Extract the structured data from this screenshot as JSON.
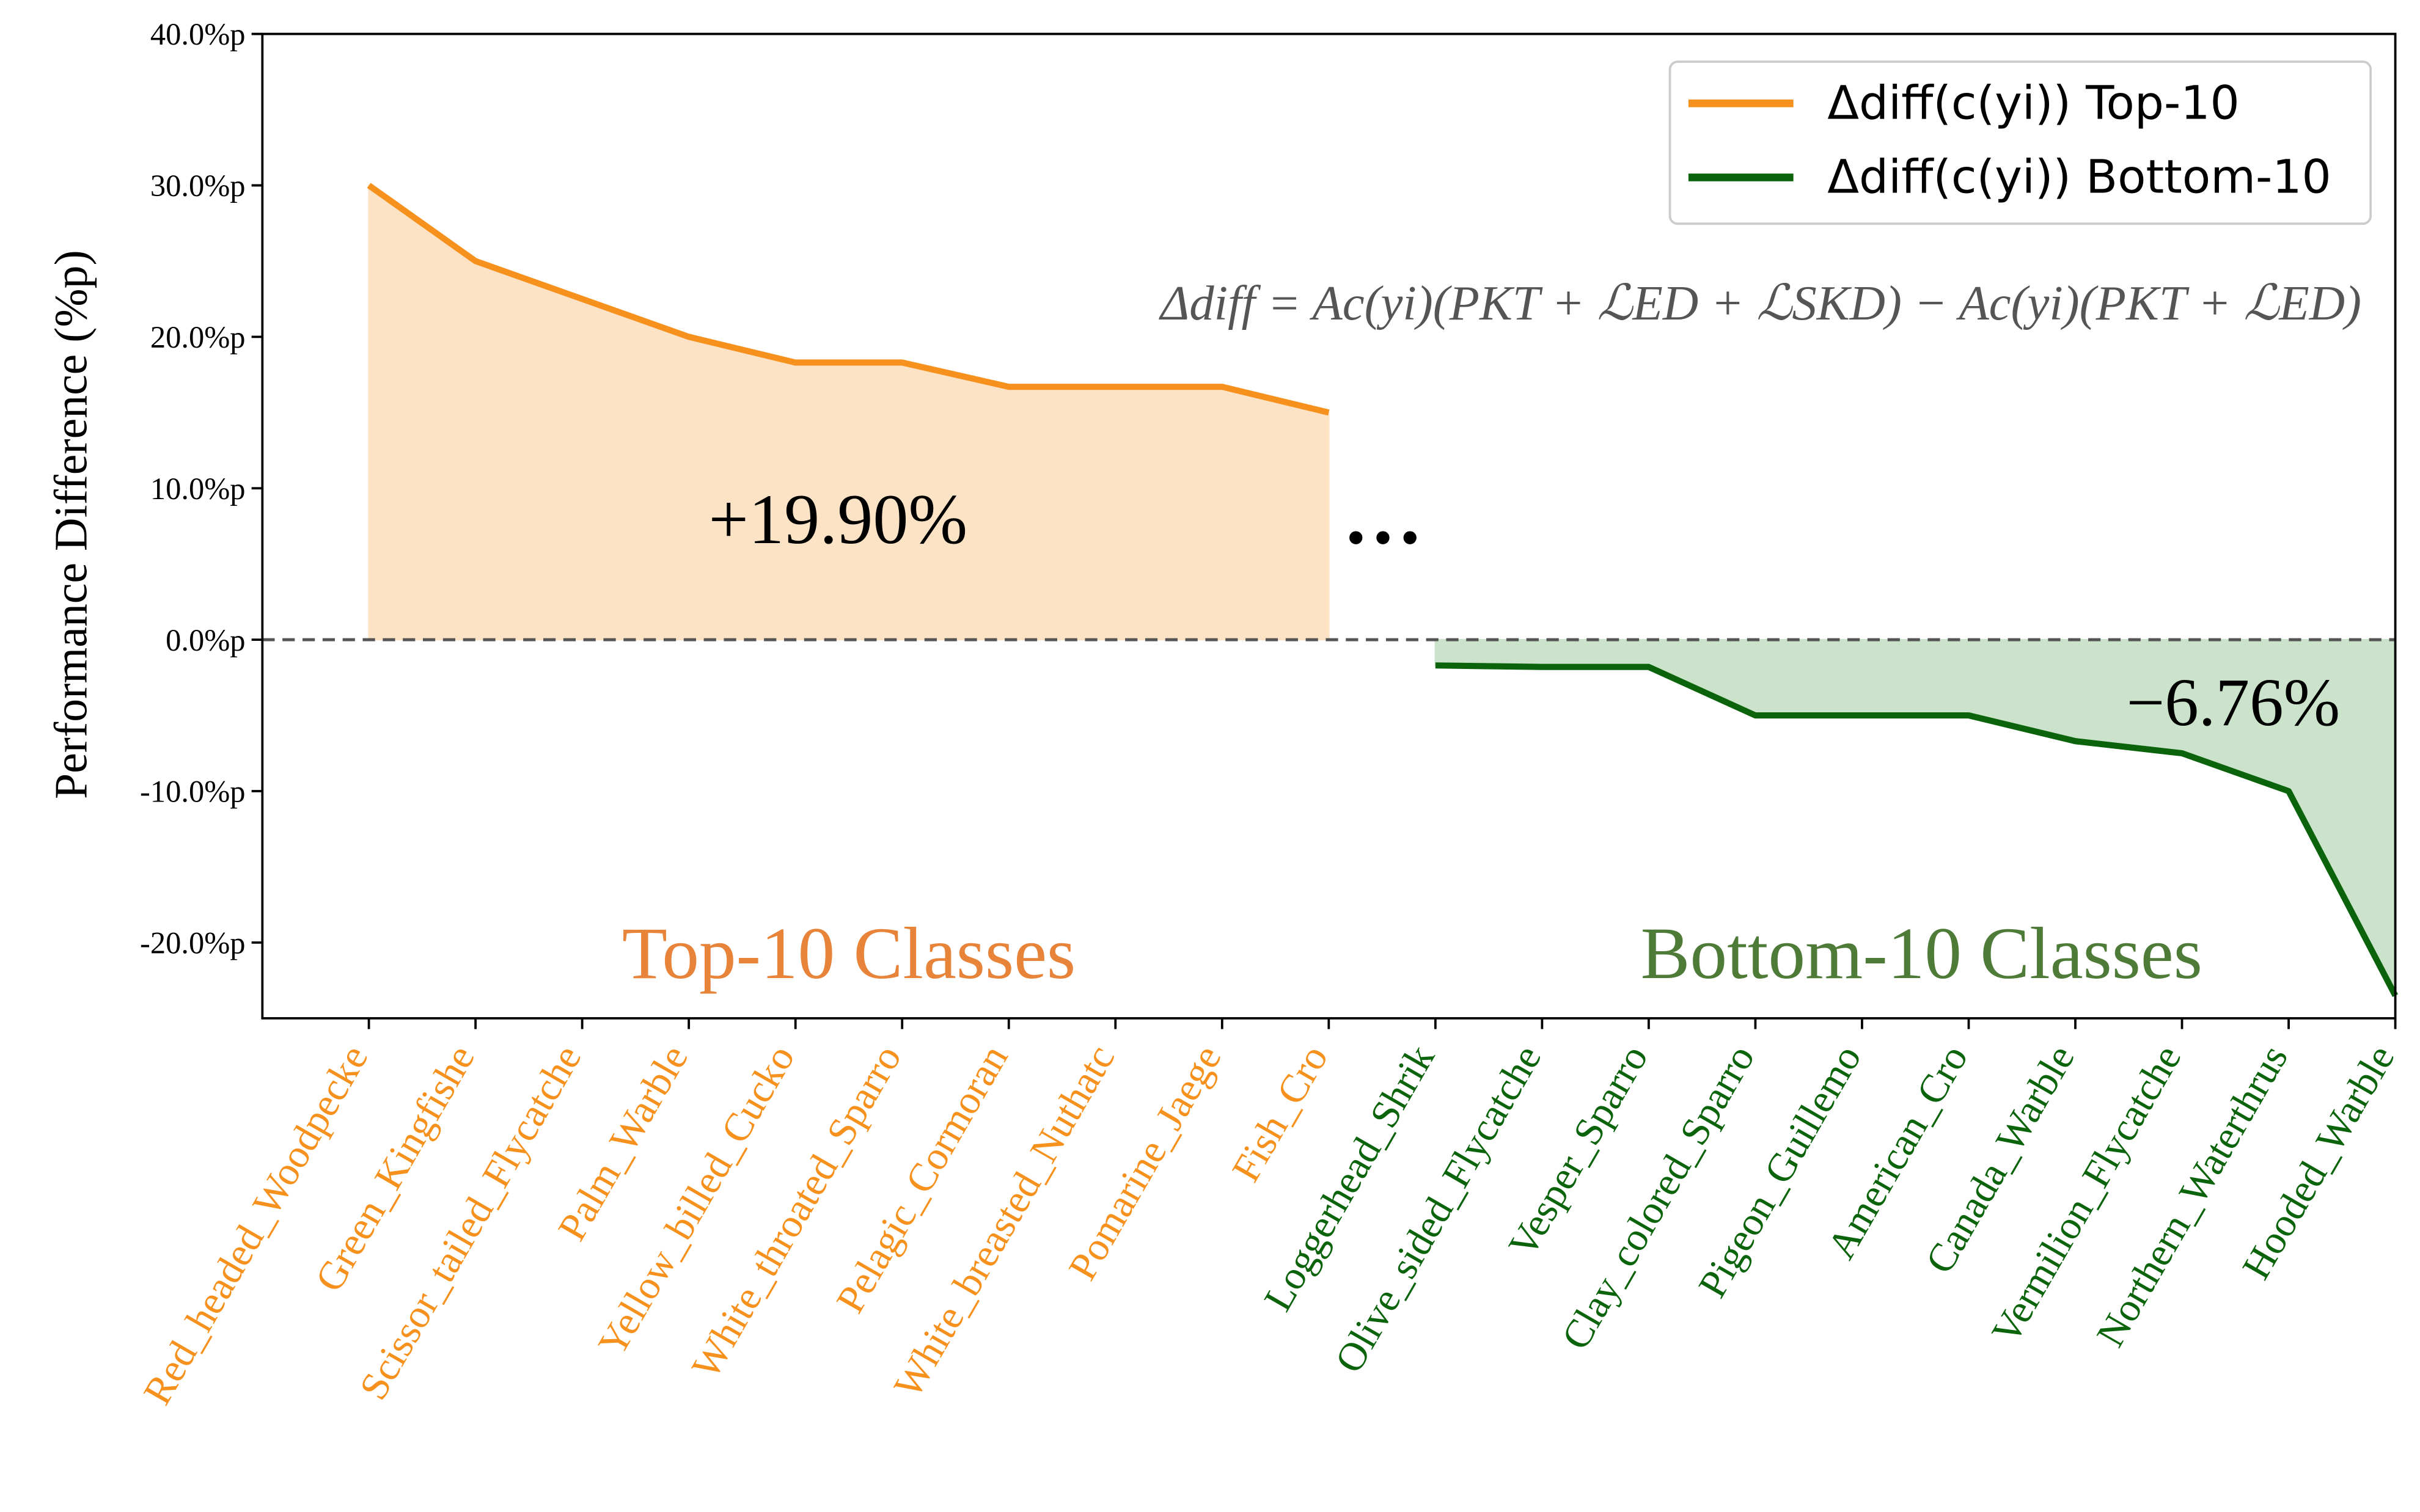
{
  "chart_data": {
    "type": "line",
    "ylabel": "Performance Difference (%p)",
    "categories": [
      "Red_headed_Woodpecke",
      "Green_Kingfishe",
      "Scissor_tailed_Flycatche",
      "Palm_Warble",
      "Yellow_billed_Cucko",
      "White_throated_Sparro",
      "Pelagic_Cormoran",
      "White_breasted_Nuthatc",
      "Pomarine_Jaege",
      "Fish_Cro",
      "Loggerhead_Shrik",
      "Olive_sided_Flycatche",
      "Vesper_Sparro",
      "Clay_colored_Sparro",
      "Pigeon_Guillemo",
      "American_Cro",
      "Canada_Warble",
      "Vermilion_Flycatche",
      "Northern_Waterthrus",
      "Hooded_Warble"
    ],
    "series": [
      {
        "name": "Δdiff(c(yi)) Top-10",
        "color": "#f7911d",
        "fill": "#fde3c6",
        "values": [
          30,
          25,
          22.5,
          20,
          18.3,
          18.3,
          16.7,
          16.7,
          16.7,
          15,
          null,
          null,
          null,
          null,
          null,
          null,
          null,
          null,
          null,
          null
        ]
      },
      {
        "name": "Δdiff(c(yi)) Bottom-10",
        "color": "#0b640b",
        "fill": "#cbe3cb",
        "values": [
          null,
          null,
          null,
          null,
          null,
          null,
          null,
          null,
          null,
          null,
          -1.7,
          -1.8,
          -1.8,
          -5,
          -5,
          -5,
          -6.7,
          -7.5,
          -10,
          -23.5
        ]
      }
    ],
    "ylim": [
      -25,
      40
    ],
    "yticks": [
      {
        "value": 40,
        "label": "40.0%p"
      },
      {
        "value": 30,
        "label": "30.0%p"
      },
      {
        "value": 20,
        "label": "20.0%p"
      },
      {
        "value": 10,
        "label": "10.0%p"
      },
      {
        "value": 0,
        "label": "0.0%p"
      },
      {
        "value": -10,
        "label": "-10.0%p"
      },
      {
        "value": -20,
        "label": "-20.0%p"
      }
    ],
    "legend": "upper right",
    "annotations": [
      {
        "text": "Δdiff = Ac(yi)(PKT + ℒED + ℒSKD) − Ac(yi)(PKT + ℒED)",
        "color": "#555555"
      },
      {
        "text": "+19.90%",
        "color": "#000000"
      },
      {
        "text": "−6.76%",
        "color": "#000000"
      },
      {
        "text": "…",
        "color": "#000000"
      },
      {
        "text": "Top-10 Classes",
        "color": "#e8833a"
      },
      {
        "text": "Bottom-10 Classes",
        "color": "#4e7c38"
      }
    ]
  }
}
